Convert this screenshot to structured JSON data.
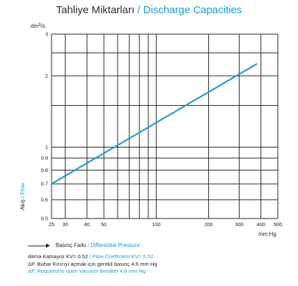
{
  "header": {
    "title_tr": "Tahliye Miktarları",
    "separator": " / ",
    "title_en": "Discharge Capacities"
  },
  "chart_data": {
    "type": "line",
    "xscale": "log",
    "yscale": "log",
    "xlim": [
      25,
      500
    ],
    "ylim": [
      0.5,
      3
    ],
    "grid": true,
    "x_ticks": [
      25,
      30,
      40,
      50,
      100,
      200,
      300,
      400,
      500
    ],
    "x_tick_labels": [
      "25",
      "30",
      "40",
      "50",
      "100",
      "200",
      "300",
      "400",
      "500"
    ],
    "x_grid": [
      25,
      30,
      40,
      50,
      60,
      70,
      80,
      90,
      100,
      200,
      300,
      400,
      500
    ],
    "y_ticks": [
      0.5,
      0.6,
      0.7,
      0.8,
      0.9,
      1,
      2,
      3
    ],
    "y_tick_labels": [
      "0.5",
      "0.6",
      "0.7",
      "0.8",
      "0.9",
      "1",
      "2",
      "3"
    ],
    "y_grid": [
      0.5,
      0.6,
      0.7,
      0.8,
      0.9,
      1,
      1.5,
      2,
      2.5,
      3
    ],
    "x_unit": "mm Hg",
    "y_unit": "dm³/s",
    "ylabel_tr": "Akış",
    "ylabel_sep": " / ",
    "ylabel_en": "Flow",
    "xlabel_tr": "Basınç Farkı",
    "xlabel_sep": " / ",
    "xlabel_en": "Differential Pressure",
    "line_color": "#1a9ad8",
    "series": [
      {
        "x": [
          25,
          380
        ],
        "y": [
          0.7,
          2.25
        ]
      }
    ]
  },
  "notes": {
    "kv_tr": "Akma Katsayısı KV= 0.52",
    "kv_sep": " / ",
    "kv_en": "Flow Coefficient KV= 0.52",
    "dp_tr": "ΔP, Buhar Kırıcıyı açmak için gerekli basınç 4.6 mm Hg",
    "dp_en": "ΔP, Required to open Vacuum Breaker 4.6 mm Hg"
  },
  "colors": {
    "accent": "#1a9ad8",
    "grid": "#222222"
  }
}
